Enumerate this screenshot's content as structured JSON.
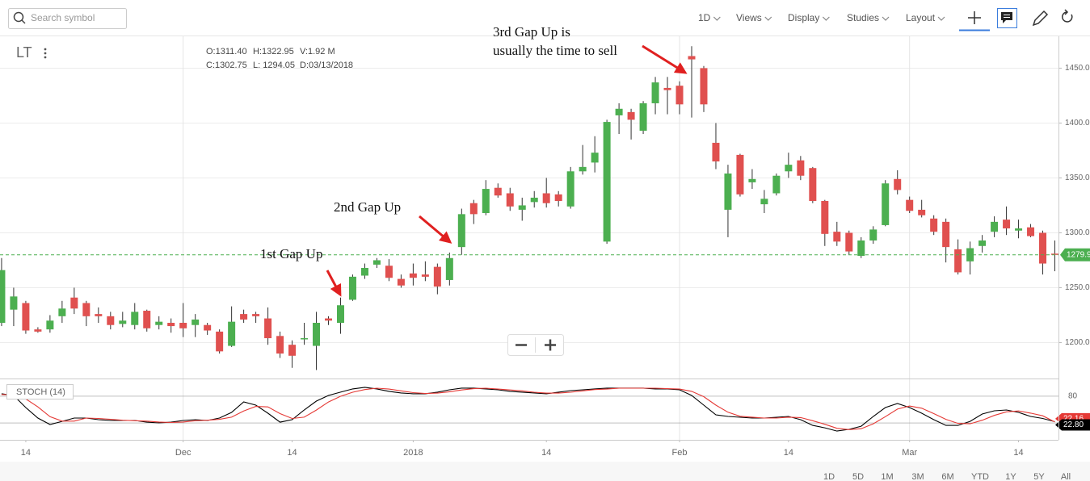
{
  "toolbar": {
    "search_placeholder": "Search symbol",
    "menus": [
      "1D",
      "Views",
      "Display",
      "Studies",
      "Layout"
    ]
  },
  "symbol": "LT",
  "ohlc_legend": [
    [
      "O:1311.40",
      "H:1322.95",
      "V:1.92 M"
    ],
    [
      "C:1302.75",
      "L: 1294.05",
      "D:03/13/2018"
    ]
  ],
  "range_buttons": [
    "1D",
    "5D",
    "1M",
    "3M",
    "6M",
    "YTD",
    "1Y",
    "5Y",
    "All"
  ],
  "chart_data": [
    {
      "type": "candlestick",
      "up_color": "#4caf50",
      "down_color": "#e0504f",
      "open": [
        1218,
        1230,
        1236,
        1212,
        1212,
        1224,
        1241,
        1236,
        1226,
        1224,
        1217,
        1216,
        1229,
        1216,
        1218,
        1218,
        1216,
        1216,
        1210,
        1197,
        1226,
        1226,
        1222,
        1206,
        1198,
        1203,
        1197,
        1222,
        1218,
        1239,
        1261,
        1271,
        1270,
        1258,
        1263,
        1262,
        1269,
        1257,
        1287,
        1327,
        1318,
        1341,
        1336,
        1321,
        1328,
        1336,
        1335,
        1324,
        1356,
        1364,
        1292,
        1407,
        1410,
        1393,
        1418,
        1432,
        1434,
        1461,
        1450,
        1382,
        1321,
        1371,
        1346,
        1326,
        1336,
        1356,
        1366,
        1359,
        1329,
        1301,
        1300,
        1279,
        1293,
        1307,
        1349,
        1330,
        1321,
        1313,
        1310,
        1285,
        1274,
        1288,
        1301,
        1312,
        1302,
        1305,
        1300,
        1281
      ],
      "high": [
        1277,
        1250,
        1238,
        1214,
        1225,
        1238,
        1250,
        1238,
        1232,
        1228,
        1228,
        1236,
        1230,
        1224,
        1222,
        1236,
        1226,
        1218,
        1212,
        1233,
        1230,
        1228,
        1232,
        1210,
        1202,
        1218,
        1228,
        1224,
        1241,
        1262,
        1272,
        1277,
        1276,
        1262,
        1272,
        1274,
        1272,
        1282,
        1322,
        1330,
        1348,
        1345,
        1341,
        1332,
        1338,
        1350,
        1338,
        1360,
        1380,
        1388,
        1403,
        1418,
        1413,
        1420,
        1442,
        1442,
        1438,
        1470,
        1452,
        1400,
        1362,
        1372,
        1358,
        1339,
        1354,
        1373,
        1370,
        1360,
        1330,
        1310,
        1302,
        1296,
        1306,
        1348,
        1357,
        1333,
        1330,
        1316,
        1313,
        1294,
        1292,
        1298,
        1315,
        1324,
        1312,
        1308,
        1302,
        1293
      ],
      "low": [
        1215,
        1215,
        1208,
        1209,
        1209,
        1218,
        1226,
        1215,
        1218,
        1212,
        1214,
        1212,
        1210,
        1212,
        1209,
        1205,
        1205,
        1207,
        1190,
        1196,
        1218,
        1218,
        1198,
        1186,
        1177,
        1198,
        1175,
        1216,
        1208,
        1238,
        1258,
        1268,
        1256,
        1250,
        1252,
        1256,
        1244,
        1252,
        1280,
        1308,
        1316,
        1332,
        1320,
        1311,
        1323,
        1323,
        1324,
        1322,
        1353,
        1355,
        1290,
        1390,
        1385,
        1390,
        1408,
        1408,
        1408,
        1405,
        1410,
        1358,
        1296,
        1333,
        1340,
        1318,
        1334,
        1350,
        1348,
        1327,
        1288,
        1288,
        1280,
        1277,
        1290,
        1306,
        1335,
        1318,
        1314,
        1298,
        1273,
        1262,
        1262,
        1282,
        1296,
        1298,
        1295,
        1296,
        1262,
        1265
      ],
      "close": [
        1266,
        1242,
        1211,
        1210,
        1220,
        1231,
        1231,
        1224,
        1224,
        1216,
        1220,
        1228,
        1213,
        1219,
        1215,
        1213,
        1221,
        1211,
        1192,
        1219,
        1221,
        1224,
        1204,
        1190,
        1188,
        1204,
        1218,
        1220,
        1234,
        1260,
        1268,
        1275,
        1259,
        1252,
        1259,
        1260,
        1251,
        1277,
        1317,
        1317,
        1340,
        1334,
        1324,
        1325,
        1332,
        1327,
        1329,
        1356,
        1360,
        1373,
        1401,
        1413,
        1403,
        1418,
        1437,
        1430,
        1417,
        1458,
        1417,
        1365,
        1354,
        1335,
        1349,
        1331,
        1352,
        1362,
        1352,
        1329,
        1299,
        1292,
        1283,
        1293,
        1303,
        1345,
        1339,
        1320,
        1316,
        1301,
        1287,
        1264,
        1286,
        1293,
        1310,
        1304,
        1304,
        1297,
        1272,
        1279.9
      ],
      "xlim": [
        -0.13,
        87.3
      ],
      "xticks": [
        {
          "value": 2,
          "label": "14"
        },
        {
          "value": 15,
          "label": "Dec"
        },
        {
          "value": 24,
          "label": "14"
        },
        {
          "value": 34,
          "label": "2018"
        },
        {
          "value": 45,
          "label": "14"
        },
        {
          "value": 56,
          "label": "Feb"
        },
        {
          "value": 65,
          "label": "14"
        },
        {
          "value": 75,
          "label": "Mar"
        },
        {
          "value": 84,
          "label": "14"
        }
      ],
      "ylim": [
        1168,
        1479
      ],
      "yticks": [
        {
          "value": 1200,
          "label": "1200.0"
        },
        {
          "value": 1250,
          "label": "1250.0"
        },
        {
          "value": 1300,
          "label": "1300.0"
        },
        {
          "value": 1350,
          "label": "1350.0"
        },
        {
          "value": 1400,
          "label": "1400.0"
        },
        {
          "value": 1450,
          "label": "1450.0"
        }
      ],
      "grid": true,
      "last_price_color": "#4caf50",
      "annotations": [
        "1st Gap Up",
        "2nd Gap Up",
        "3rd Gap Up is",
        "usually the time to sell"
      ]
    },
    {
      "type": "line",
      "title": "STOCH (14)",
      "ylim": [
        -18,
        118
      ],
      "yticks": [
        20,
        80
      ],
      "series": [
        {
          "color": "#000000",
          "values": [
            85.5,
            81.8,
            54.5,
            30.9,
            16.4,
            23.6,
            30.9,
            30.9,
            27.3,
            25.5,
            25.5,
            25.5,
            21.8,
            20,
            21.8,
            25.5,
            27.3,
            25.5,
            30.9,
            43.6,
            67.3,
            60,
            41.8,
            21.8,
            27.3,
            49.1,
            69.1,
            81.8,
            89.1,
            96.4,
            100,
            96.4,
            90.9,
            87.3,
            85.5,
            85.5,
            89.1,
            94.5,
            98.2,
            98.2,
            96.4,
            94.5,
            90.9,
            89.1,
            87.3,
            85.5,
            89.1,
            92.7,
            94.5,
            96.4,
            98.2,
            98.2,
            98.2,
            98.2,
            96.4,
            96.4,
            94.5,
            81.8,
            60,
            38.2,
            34.5,
            32.7,
            30.9,
            30.9,
            32.7,
            34.5,
            27.3,
            14.5,
            9.1,
            1.8,
            5.5,
            12.7,
            34.5,
            54.5,
            63.6,
            54.5,
            41.8,
            27.3,
            14.5,
            14.5,
            23.6,
            40,
            47.3,
            49.1,
            43.6,
            34.5,
            30,
            22.8
          ],
          "value_labels": [
            null,
            null,
            null,
            null,
            null,
            null,
            null,
            null,
            null,
            null,
            null,
            null,
            null,
            null,
            null,
            null,
            null,
            null,
            null,
            null,
            null,
            null,
            null,
            null,
            null,
            null,
            null,
            null,
            null,
            null,
            null,
            null,
            null,
            null,
            null,
            null,
            null,
            null,
            null,
            null,
            null,
            null,
            null,
            null,
            null,
            null,
            null,
            null,
            null,
            null,
            null,
            null,
            null,
            null,
            null,
            null,
            null,
            null,
            null,
            null,
            null,
            null,
            null,
            null,
            null,
            null,
            null,
            null,
            null,
            null,
            null,
            null,
            null,
            null,
            null,
            null,
            null,
            null,
            null,
            null,
            null,
            null,
            null,
            null,
            null,
            null,
            null,
            "22.80"
          ]
        },
        {
          "color": "#e53935",
          "values": [
            84,
            83,
            74,
            56,
            34,
            24,
            24,
            31,
            30,
            28,
            26,
            25,
            24,
            22,
            21,
            22,
            25,
            26,
            28,
            33,
            47,
            57,
            56,
            41,
            30,
            33,
            49,
            67,
            80,
            89,
            95,
            98,
            96,
            92,
            88,
            86,
            87,
            90,
            94,
            97,
            98,
            96,
            94,
            92,
            89,
            87,
            87,
            89,
            92,
            95,
            96,
            98,
            98,
            98,
            98,
            97,
            96,
            91,
            79,
            60,
            44,
            35,
            33,
            31,
            31,
            33,
            32,
            25,
            17,
            8,
            5,
            7,
            18,
            34,
            51,
            58,
            53,
            41,
            28,
            19,
            18,
            26,
            37,
            45,
            47,
            42,
            36,
            22.16
          ]
        }
      ]
    }
  ]
}
